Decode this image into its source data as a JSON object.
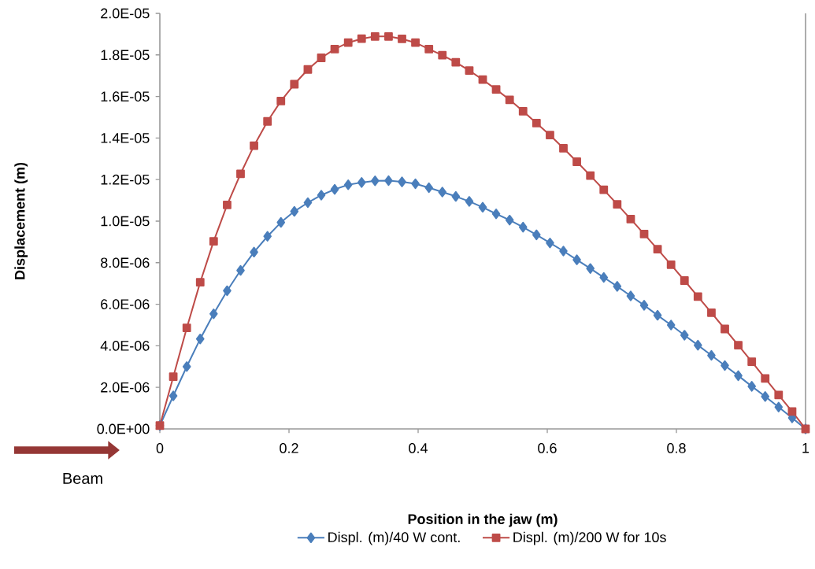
{
  "chart_data": {
    "type": "line",
    "xlabel": "Position in the jaw (m)",
    "ylabel": "Displacement (m)",
    "x": [
      0,
      0.0208,
      0.0417,
      0.0625,
      0.0833,
      0.1042,
      0.125,
      0.1458,
      0.1667,
      0.1875,
      0.2083,
      0.2292,
      0.25,
      0.2708,
      0.2917,
      0.3125,
      0.3333,
      0.3542,
      0.375,
      0.3958,
      0.4167,
      0.4375,
      0.4583,
      0.4792,
      0.5,
      0.5208,
      0.5417,
      0.5625,
      0.5833,
      0.6042,
      0.625,
      0.6458,
      0.6667,
      0.6875,
      0.7083,
      0.7292,
      0.75,
      0.7708,
      0.7917,
      0.8125,
      0.8333,
      0.8542,
      0.875,
      0.8958,
      0.9167,
      0.9375,
      0.9583,
      0.9792,
      1
    ],
    "series": [
      {
        "name": "Displ. (m)/40 W cont.",
        "color": "#4a7ebb",
        "marker": "diamond",
        "values": [
          1.6e-07,
          1.59e-06,
          3e-06,
          4.33e-06,
          5.54e-06,
          6.65e-06,
          7.63e-06,
          8.51e-06,
          9.27e-06,
          9.94e-06,
          1.047e-05,
          1.089e-05,
          1.125e-05,
          1.153e-05,
          1.175e-05,
          1.186e-05,
          1.194e-05,
          1.195e-05,
          1.189e-05,
          1.18e-05,
          1.161e-05,
          1.14e-05,
          1.119e-05,
          1.095e-05,
          1.067e-05,
          1.035e-05,
          1.005e-05,
          9.71e-06,
          9.34e-06,
          8.95e-06,
          8.56e-06,
          8.14e-06,
          7.72e-06,
          7.29e-06,
          6.86e-06,
          6.4e-06,
          5.95e-06,
          5.47e-06,
          5e-06,
          4.51e-06,
          4.03e-06,
          3.54e-06,
          3.05e-06,
          2.56e-06,
          2.05e-06,
          1.56e-06,
          1.05e-06,
          5.3e-07,
          0
        ]
      },
      {
        "name": "Displ. (m)/200 W for 10s",
        "color": "#be4b48",
        "marker": "square",
        "values": [
          1.6e-07,
          2.51e-06,
          4.86e-06,
          7.06e-06,
          9.03e-06,
          1.078e-05,
          1.228e-05,
          1.363e-05,
          1.48e-05,
          1.578e-05,
          1.659e-05,
          1.73e-05,
          1.786e-05,
          1.828e-05,
          1.859e-05,
          1.878e-05,
          1.889e-05,
          1.889e-05,
          1.877e-05,
          1.859e-05,
          1.828e-05,
          1.799e-05,
          1.765e-05,
          1.725e-05,
          1.681e-05,
          1.634e-05,
          1.584e-05,
          1.529e-05,
          1.472e-05,
          1.414e-05,
          1.351e-05,
          1.286e-05,
          1.219e-05,
          1.151e-05,
          1.081e-05,
          1.01e-05,
          9.38e-06,
          8.65e-06,
          7.9e-06,
          7.14e-06,
          6.37e-06,
          5.59e-06,
          4.81e-06,
          4.03e-06,
          3.23e-06,
          2.43e-06,
          1.63e-06,
          8.4e-07,
          0
        ]
      }
    ],
    "xlim": [
      0,
      1
    ],
    "xticks": [
      0,
      0.2,
      0.4,
      0.6,
      0.8,
      1
    ],
    "ylim": [
      0,
      2e-05
    ],
    "yticks": [
      {
        "value": 0,
        "label": "0.0E+00"
      },
      {
        "value": 2e-06,
        "label": "2.0E-06"
      },
      {
        "value": 4e-06,
        "label": "4.0E-06"
      },
      {
        "value": 6e-06,
        "label": "6.0E-06"
      },
      {
        "value": 8e-06,
        "label": "8.0E-06"
      },
      {
        "value": 1e-05,
        "label": "1.0E-05"
      },
      {
        "value": 1.2e-05,
        "label": "1.2E-05"
      },
      {
        "value": 1.4e-05,
        "label": "1.4E-05"
      },
      {
        "value": 1.6e-05,
        "label": "1.6E-05"
      },
      {
        "value": 1.8e-05,
        "label": "1.8E-05"
      },
      {
        "value": 2e-05,
        "label": "2.0E-05"
      }
    ],
    "grid": false,
    "legend": "bottom",
    "line_style": "solid",
    "annotations": [
      "Beam"
    ]
  }
}
